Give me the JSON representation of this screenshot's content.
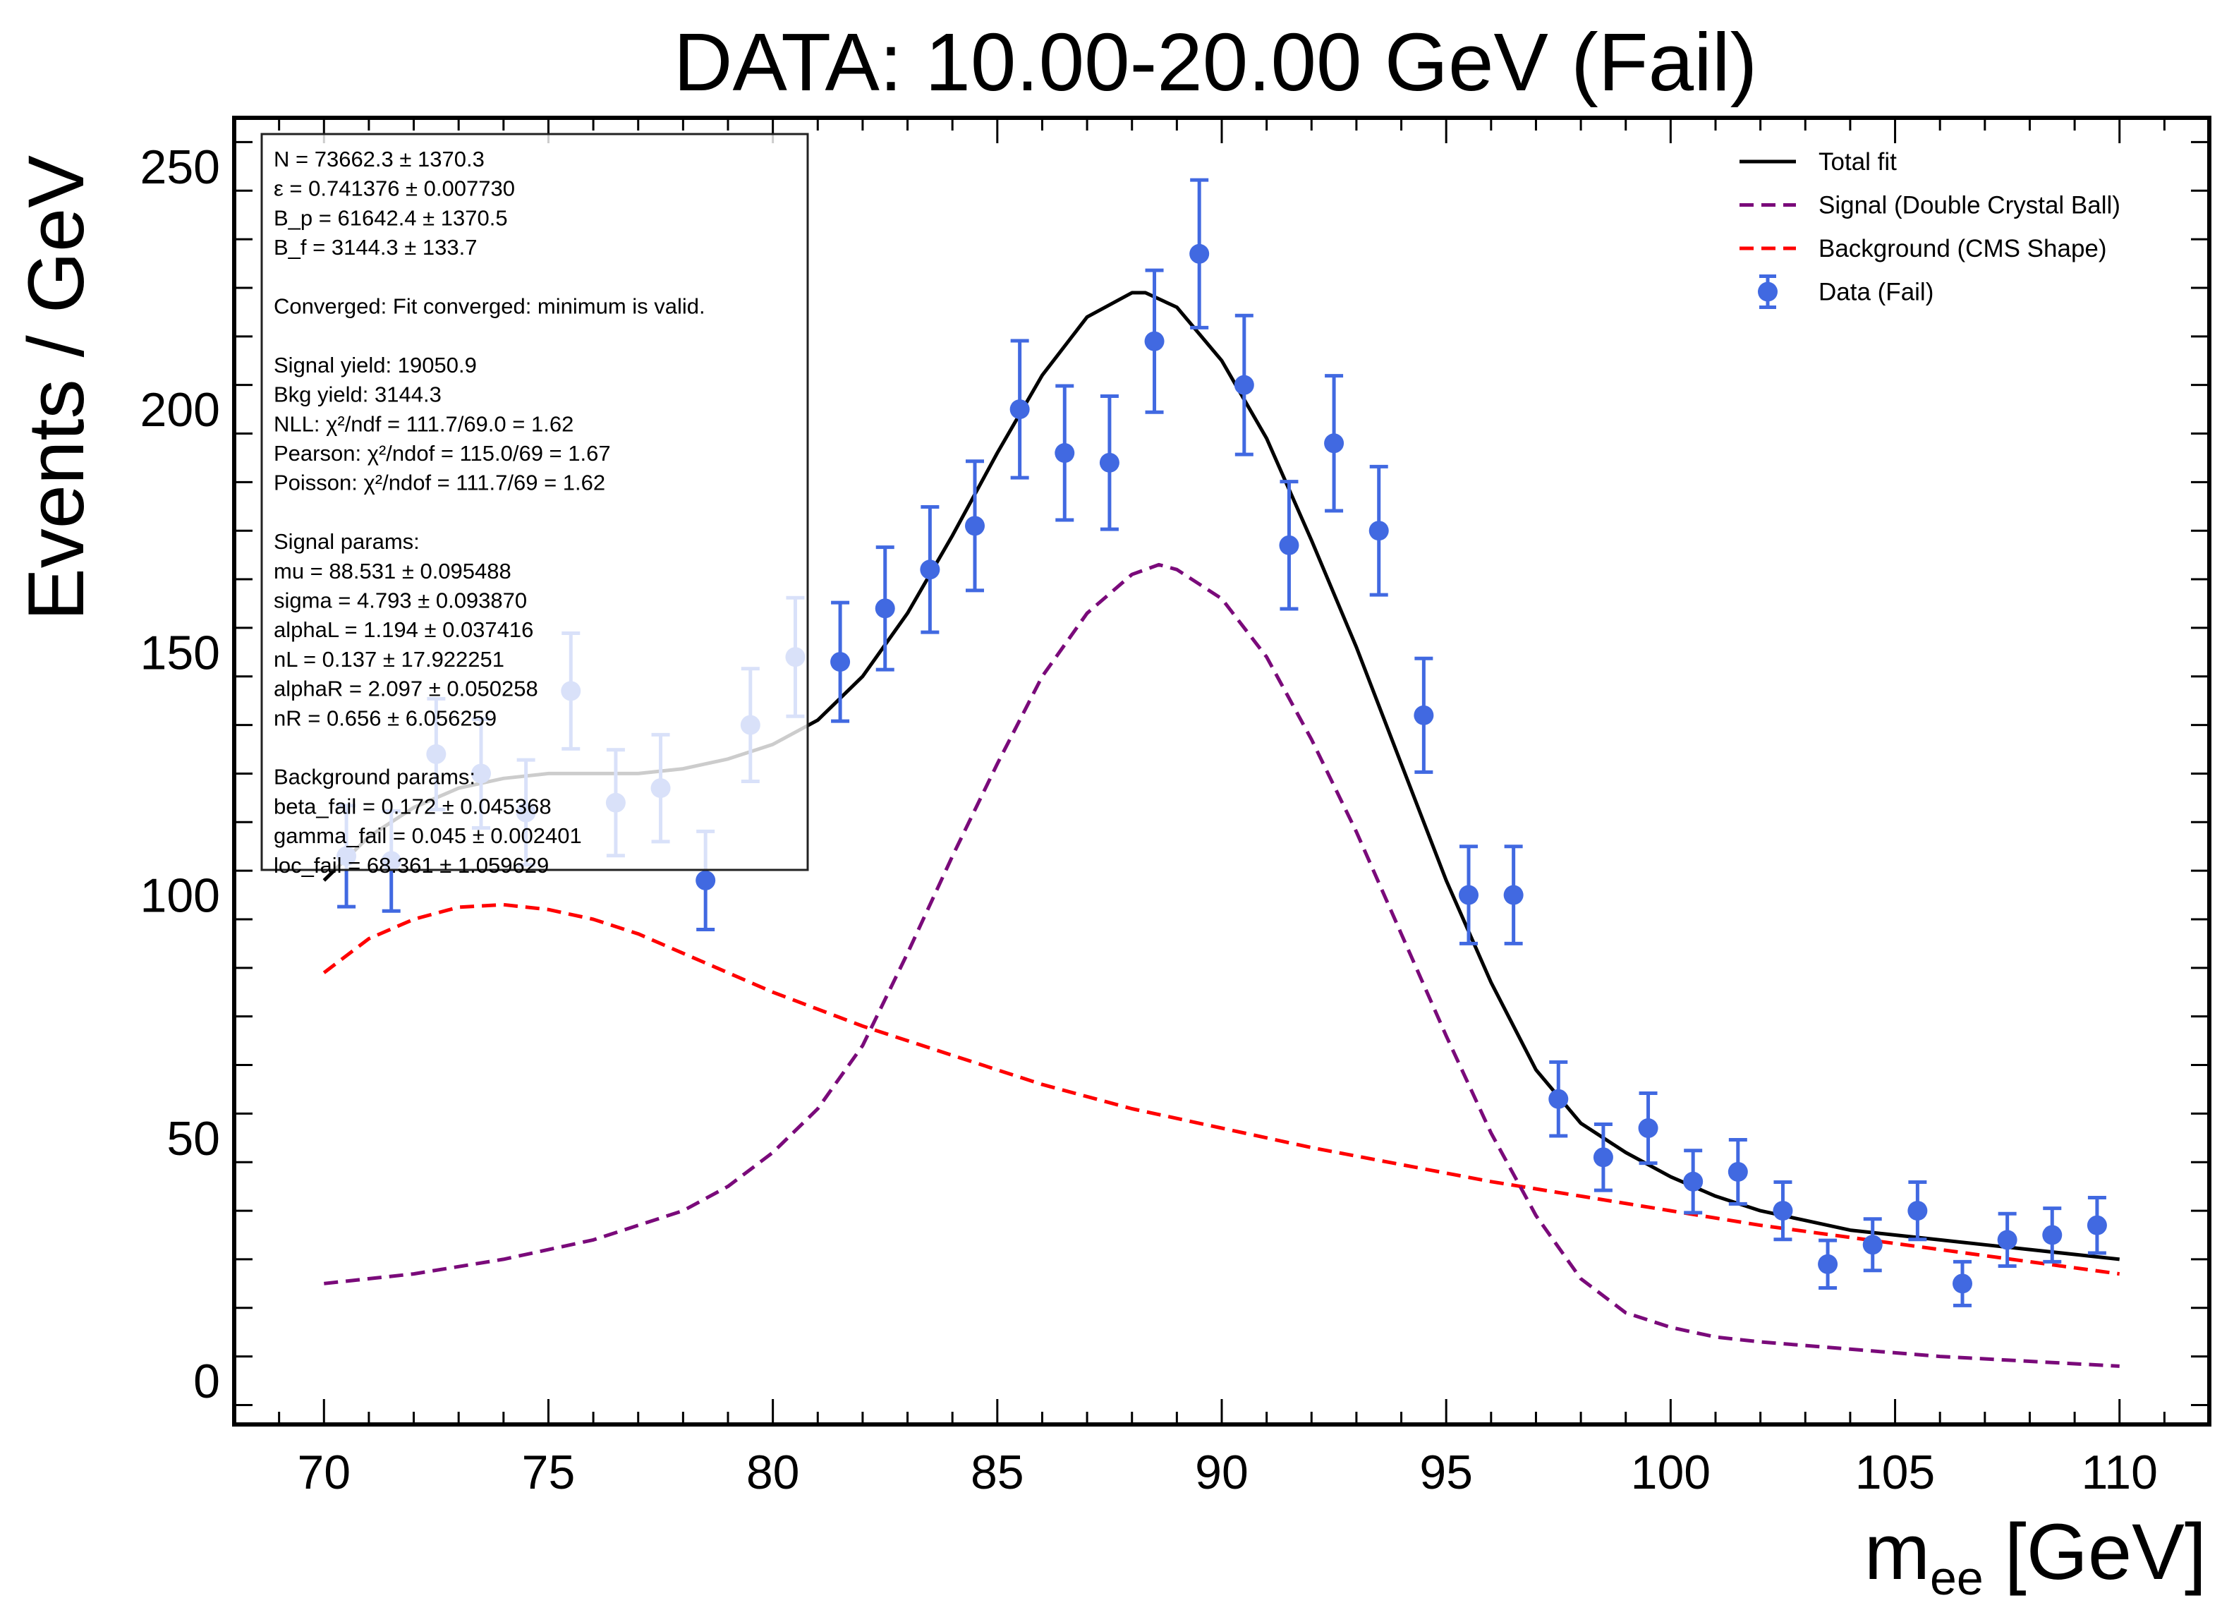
{
  "chart_data": {
    "type": "scatter",
    "title": "DATA: 10.00-20.00 GeV (Fail)",
    "xlabel_main": "m",
    "xlabel_sub": "ee",
    "xlabel_unit": "[GeV]",
    "ylabel": "Events / GeV",
    "xlim": [
      68,
      112
    ],
    "ylim": [
      -9,
      260
    ],
    "x_ticks": [
      70,
      75,
      80,
      85,
      90,
      95,
      100,
      105,
      110
    ],
    "y_ticks": [
      0,
      50,
      100,
      150,
      200,
      250
    ],
    "data": {
      "name": "Data (Fail)",
      "color": "#4169e1",
      "x": [
        70.5,
        71.5,
        72.5,
        73.5,
        74.5,
        75.5,
        76.5,
        77.5,
        78.5,
        79.5,
        80.5,
        81.5,
        82.5,
        83.5,
        84.5,
        85.5,
        86.5,
        87.5,
        88.5,
        89.5,
        90.5,
        91.5,
        92.5,
        93.5,
        94.5,
        95.5,
        96.5,
        97.5,
        98.5,
        99.5,
        100.5,
        101.5,
        102.5,
        103.5,
        104.5,
        105.5,
        106.5,
        107.5,
        108.5,
        109.5
      ],
      "y": [
        108,
        107,
        129,
        125,
        117,
        142,
        119,
        122,
        103,
        135,
        149,
        148,
        159,
        167,
        176,
        200,
        191,
        189,
        214,
        232,
        205,
        172,
        193,
        175,
        137,
        100,
        100,
        58,
        46,
        52,
        41,
        43,
        35,
        24,
        28,
        35,
        20,
        29,
        30,
        32
      ],
      "err": [
        10.4,
        10.3,
        11.4,
        11.2,
        10.8,
        11.9,
        10.9,
        11.0,
        10.1,
        11.6,
        12.2,
        12.2,
        12.6,
        12.9,
        13.3,
        14.1,
        13.8,
        13.7,
        14.6,
        15.2,
        14.3,
        13.1,
        13.9,
        13.2,
        11.7,
        10.0,
        10.0,
        7.6,
        6.8,
        7.2,
        6.4,
        6.6,
        5.9,
        4.9,
        5.3,
        5.9,
        4.5,
        5.4,
        5.5,
        5.7
      ]
    },
    "series": [
      {
        "name": "Total fit",
        "color": "#000000",
        "dash": "solid",
        "x": [
          70,
          71,
          72,
          73,
          74,
          75,
          76,
          77,
          78,
          79,
          80,
          81,
          82,
          83,
          84,
          85,
          86,
          87,
          88,
          88.3,
          89,
          90,
          91,
          92,
          93,
          94,
          95,
          96,
          97,
          98,
          99,
          100,
          101,
          102,
          103,
          104,
          105,
          106,
          107,
          108,
          109,
          110
        ],
        "y": [
          103,
          112,
          118,
          122,
          124,
          125,
          125,
          125,
          126,
          128,
          131,
          136,
          145,
          158,
          174,
          191,
          207,
          219,
          224,
          224,
          221,
          210,
          194,
          173,
          151,
          127,
          103,
          82,
          64,
          53,
          47,
          42,
          38,
          35,
          33,
          31,
          30,
          29,
          28,
          27,
          26,
          25
        ]
      },
      {
        "name": "Signal (Double Crystal Ball)",
        "color": "#7a0a7a",
        "dash": "dashed",
        "x": [
          70,
          72,
          74,
          76,
          78,
          79,
          80,
          81,
          82,
          83,
          84,
          85,
          86,
          87,
          88,
          88.6,
          89,
          90,
          91,
          92,
          93,
          94,
          95,
          96,
          97,
          98,
          99,
          100,
          101,
          102,
          104,
          106,
          108,
          110
        ],
        "y": [
          20,
          22,
          25,
          29,
          35,
          40,
          47,
          56,
          69,
          88,
          108,
          127,
          145,
          158,
          166,
          168,
          167,
          161,
          149,
          132,
          113,
          92,
          71,
          51,
          34,
          21,
          14,
          11,
          9,
          8,
          6.5,
          5,
          4,
          3
        ]
      },
      {
        "name": "Background (CMS Shape)",
        "color": "#ff0000",
        "dash": "dashed",
        "x": [
          70,
          71,
          72,
          73,
          74,
          75,
          76,
          77,
          78,
          79,
          80,
          82,
          84,
          86,
          88,
          90,
          92,
          94,
          96,
          98,
          100,
          102,
          104,
          106,
          108,
          110
        ],
        "y": [
          84,
          91,
          95,
          97.5,
          98,
          97,
          95,
          92,
          88,
          84,
          80,
          73,
          67,
          61,
          56,
          52,
          48,
          44.5,
          41,
          38,
          35,
          32,
          29.5,
          27,
          24.5,
          22
        ]
      }
    ],
    "legend": {
      "position": "top-right",
      "entries": [
        "Total fit",
        "Signal (Double Crystal Ball)",
        "Background (CMS Shape)",
        "Data (Fail)"
      ]
    },
    "stats_box": {
      "lines": [
        "N = 73662.3 ± 1370.3",
        "ε = 0.741376 ± 0.007730",
        "B_p = 61642.4 ± 1370.5",
        "B_f = 3144.3 ± 133.7",
        "",
        "Converged: Fit converged: minimum is valid.",
        "",
        "Signal yield: 19050.9",
        "Bkg yield: 3144.3",
        "NLL: χ²/ndf = 111.7/69.0 = 1.62",
        "Pearson: χ²/ndof = 115.0/69 = 1.67",
        "Poisson: χ²/ndof = 111.7/69 = 1.62",
        "",
        "Signal params:",
        "mu = 88.531 ± 0.095488",
        "sigma = 4.793 ± 0.093870",
        "alphaL = 1.194 ± 0.037416",
        "nL = 0.137 ± 17.922251",
        "alphaR = 2.097 ± 0.050258",
        "nR = 0.656 ± 6.056259",
        "",
        "Background params:",
        "beta_fail = 0.172 ± 0.045368",
        "gamma_fail = 0.045 ± 0.002401",
        "loc_fail = 68.361 ± 1.059629"
      ]
    }
  }
}
